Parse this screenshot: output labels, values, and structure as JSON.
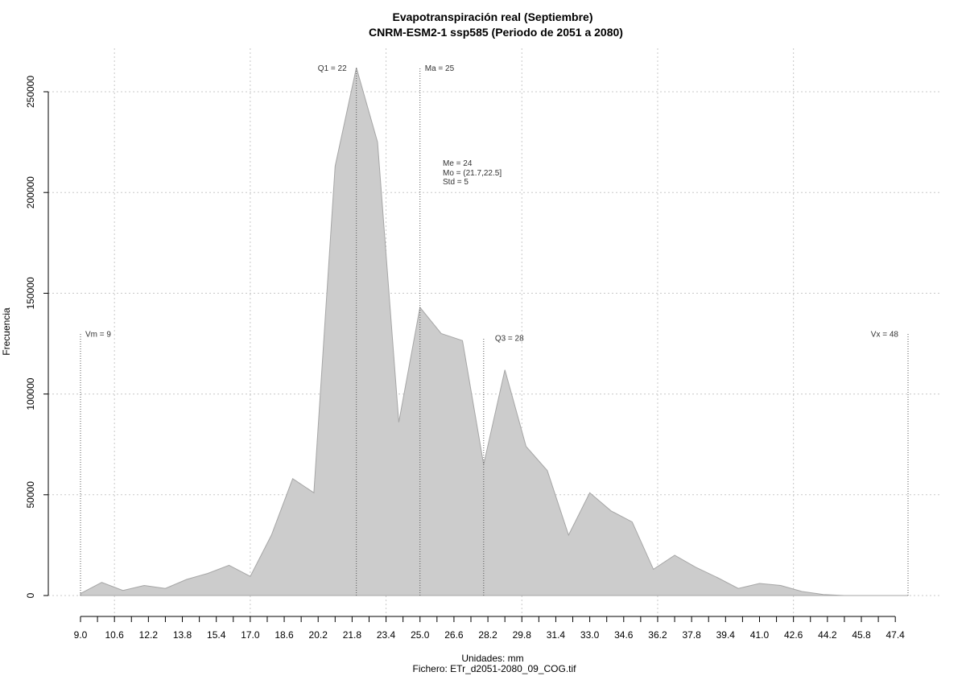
{
  "chart_data": {
    "type": "area",
    "title": "Evapotranspiración real (Septiembre)",
    "subtitle": "CNRM-ESM2-1 ssp585 (Periodo de 2051 a 2080)",
    "xlabel": "Unidades: mm",
    "caption": "Fichero: ETr_d2051-2080_09_COG.tif",
    "ylabel": "Frecuencia",
    "xlim": [
      9.0,
      48.0
    ],
    "ylim": [
      0,
      250000
    ],
    "x_ticks": [
      "9.0",
      "10.6",
      "12.2",
      "13.8",
      "15.4",
      "17.0",
      "18.6",
      "20.2",
      "21.8",
      "23.4",
      "25.0",
      "26.6",
      "28.2",
      "29.8",
      "31.4",
      "33.0",
      "34.6",
      "36.2",
      "37.8",
      "39.4",
      "41.0",
      "42.6",
      "44.2",
      "45.8",
      "47.4"
    ],
    "y_ticks": [
      "0",
      "50000",
      "100000",
      "150000",
      "200000",
      "250000"
    ],
    "grid": true,
    "x": [
      9.0,
      10.0,
      11.0,
      12.0,
      13.0,
      14.0,
      15.0,
      16.0,
      17.0,
      18.0,
      19.0,
      20.0,
      21.0,
      22.0,
      23.0,
      24.0,
      25.0,
      26.0,
      27.0,
      28.0,
      29.0,
      30.0,
      31.0,
      32.0,
      33.0,
      34.0,
      35.0,
      36.0,
      37.0,
      38.0,
      39.0,
      40.0,
      41.0,
      42.0,
      43.0,
      44.0,
      45.0,
      46.0,
      47.0,
      48.0
    ],
    "values": [
      1000,
      6500,
      2500,
      5000,
      3500,
      8000,
      11000,
      15000,
      9500,
      30000,
      58000,
      51000,
      213000,
      262000,
      225000,
      86000,
      143000,
      130000,
      126500,
      65000,
      112000,
      74000,
      62000,
      30000,
      51000,
      42000,
      36500,
      13000,
      20000,
      14000,
      9000,
      3500,
      6000,
      5000,
      2000,
      500,
      0,
      0,
      0,
      0
    ],
    "fill_color": "#cccccc",
    "line_color": "#a6a6a6",
    "markers": [
      {
        "label": "Vm = 9",
        "x": 9.0
      },
      {
        "label": "Q1 = 22",
        "x": 22.0
      },
      {
        "label": "Ma = 25",
        "x": 25.0
      },
      {
        "label": "Q3 = 28",
        "x": 28.0
      },
      {
        "label": "Vx = 48",
        "x": 48.0
      }
    ],
    "stats_text": [
      "Me = 24",
      "Mo = (21.7,22.5]",
      "Std = 5"
    ]
  }
}
